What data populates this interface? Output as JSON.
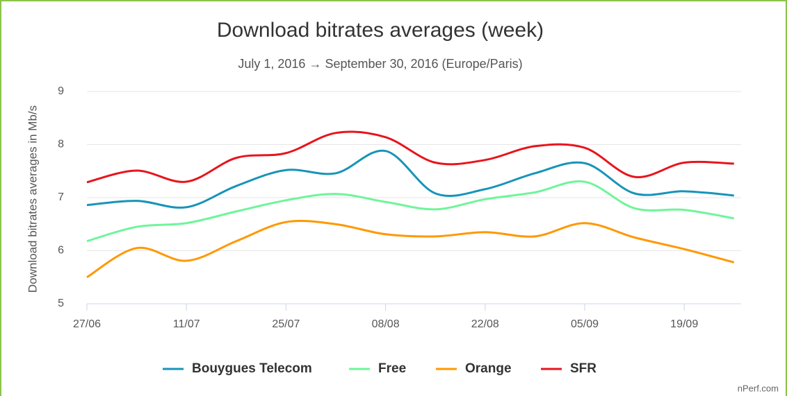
{
  "chart_data": {
    "type": "line",
    "title": "Download bitrates averages (week)",
    "subtitle": "July 1, 2016 → September 30, 2016 (Europe/Paris)",
    "y_label": "Download bitrates averages in Mb/s",
    "credit": "nPerf.com",
    "categories": [
      "27/06",
      null,
      "11/07",
      null,
      "25/07",
      null,
      "08/08",
      null,
      "22/08",
      null,
      "05/09",
      null,
      "19/09",
      null
    ],
    "ylim": [
      5,
      9
    ],
    "yticks": [
      5,
      6,
      7,
      8,
      9
    ],
    "grid": true,
    "legend": "bottom",
    "smooth": true,
    "series": [
      {
        "name": "Bouygues Telecom",
        "color": "#1794b8",
        "values": [
          6.86,
          6.94,
          6.82,
          7.22,
          7.52,
          7.46,
          7.88,
          7.08,
          7.16,
          7.46,
          7.65,
          7.08,
          7.12,
          7.04
        ]
      },
      {
        "name": "Free",
        "color": "#6ef59a",
        "values": [
          6.18,
          6.45,
          6.52,
          6.74,
          6.95,
          7.07,
          6.92,
          6.78,
          6.97,
          7.1,
          7.3,
          6.8,
          6.77,
          6.61
        ]
      },
      {
        "name": "Orange",
        "color": "#ff9800",
        "values": [
          5.5,
          6.05,
          5.81,
          6.18,
          6.54,
          6.5,
          6.31,
          6.27,
          6.35,
          6.27,
          6.52,
          6.25,
          6.03,
          5.78
        ]
      },
      {
        "name": "SFR",
        "color": "#e8141c",
        "values": [
          7.29,
          7.51,
          7.3,
          7.75,
          7.84,
          8.22,
          8.14,
          7.66,
          7.71,
          7.97,
          7.94,
          7.39,
          7.66,
          7.64
        ]
      }
    ]
  }
}
